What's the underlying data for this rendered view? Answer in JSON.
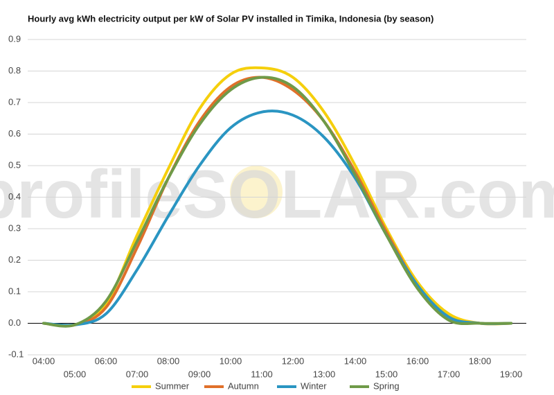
{
  "chart_data": {
    "type": "line",
    "title": "Hourly avg kWh electricity output per kW of Solar PV installed in Timika, Indonesia (by season)",
    "watermark": "profileSOLAR.com",
    "categories": [
      "04:00",
      "05:00",
      "06:00",
      "07:00",
      "08:00",
      "09:00",
      "10:00",
      "11:00",
      "12:00",
      "13:00",
      "14:00",
      "15:00",
      "16:00",
      "17:00",
      "18:00",
      "19:00"
    ],
    "series": [
      {
        "name": "Summer",
        "color": "#f5cf0c",
        "values": [
          0,
          -0.005,
          0.06,
          0.28,
          0.49,
          0.68,
          0.79,
          0.81,
          0.78,
          0.67,
          0.5,
          0.3,
          0.13,
          0.03,
          0,
          0
        ]
      },
      {
        "name": "Autumn",
        "color": "#e0702a",
        "values": [
          0,
          -0.005,
          0.05,
          0.24,
          0.46,
          0.64,
          0.75,
          0.78,
          0.74,
          0.64,
          0.48,
          0.29,
          0.12,
          0.02,
          0,
          0
        ]
      },
      {
        "name": "Winter",
        "color": "#2a95c2",
        "values": [
          0,
          -0.005,
          0.03,
          0.17,
          0.34,
          0.5,
          0.62,
          0.67,
          0.66,
          0.59,
          0.46,
          0.28,
          0.12,
          0.02,
          0,
          0
        ]
      },
      {
        "name": "Spring",
        "color": "#6f9a48",
        "values": [
          0,
          -0.005,
          0.07,
          0.26,
          0.46,
          0.63,
          0.74,
          0.78,
          0.75,
          0.64,
          0.47,
          0.28,
          0.11,
          0.01,
          0,
          0
        ]
      }
    ],
    "ylim": [
      -0.1,
      0.9
    ],
    "yticks": [
      -0.1,
      {
        "value": 0,
        "label": "0.0"
      },
      0.1,
      0.2,
      0.3,
      0.4,
      0.5,
      0.6,
      0.7,
      0.8,
      0.9
    ],
    "grid": true,
    "legend": "bottom"
  }
}
